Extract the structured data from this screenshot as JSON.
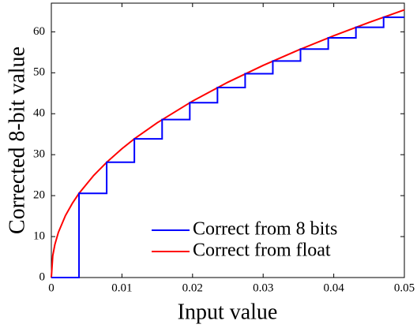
{
  "chart_data": {
    "type": "line",
    "xlabel": "Input value",
    "ylabel": "Corrected 8-bit value",
    "xlim": [
      0,
      0.05
    ],
    "ylim": [
      0,
      67
    ],
    "xticks": [
      0,
      0.01,
      0.02,
      0.03,
      0.04,
      0.05
    ],
    "yticks": [
      0,
      10,
      20,
      30,
      40,
      50,
      60
    ],
    "legend": "lower right",
    "grid": false,
    "series": [
      {
        "name": "Correct from 8 bits",
        "color": "#0000ff",
        "x": [
          0,
          0.00392,
          0.00392,
          0.00784,
          0.00784,
          0.01176,
          0.01176,
          0.01569,
          0.01569,
          0.01961,
          0.01961,
          0.02353,
          0.02353,
          0.02745,
          0.02745,
          0.03137,
          0.03137,
          0.03529,
          0.03529,
          0.03922,
          0.03922,
          0.04314,
          0.04314,
          0.04706,
          0.04706,
          0.05
        ],
        "values": [
          0,
          0,
          20.55,
          20.55,
          28.15,
          28.15,
          33.87,
          33.87,
          38.58,
          38.58,
          42.69,
          42.69,
          46.39,
          46.39,
          49.76,
          49.76,
          52.87,
          52.87,
          55.78,
          55.78,
          58.52,
          58.52,
          61.11,
          61.11,
          63.57,
          63.57
        ]
      },
      {
        "name": "Correct from float",
        "color": "#ff0000",
        "x": [
          0,
          0.0002,
          0.0005,
          0.001,
          0.002,
          0.003,
          0.00392,
          0.006,
          0.00784,
          0.01,
          0.01176,
          0.015,
          0.02,
          0.025,
          0.03,
          0.035,
          0.04,
          0.045,
          0.05
        ],
        "values": [
          0,
          5.31,
          8.06,
          11.04,
          15.13,
          18.19,
          20.55,
          24.93,
          28.15,
          31.45,
          33.87,
          37.8,
          43.09,
          47.69,
          51.8,
          55.56,
          59.04,
          62.29,
          65.36
        ]
      }
    ]
  }
}
